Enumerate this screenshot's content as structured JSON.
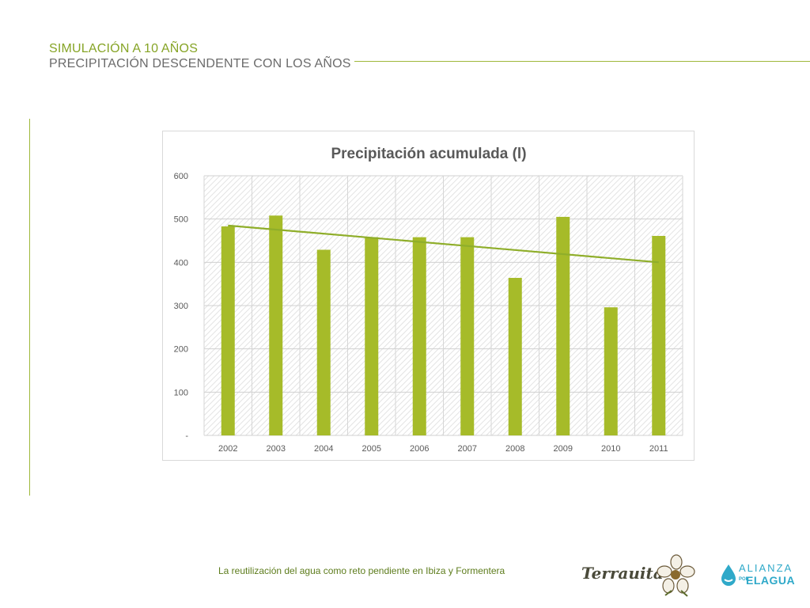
{
  "slide": {
    "title": "SIMULACIÓN A 10 AÑOS",
    "subtitle": "PRECIPITACIÓN DESCENDENTE CON LOS AÑOS",
    "footer": "La reutilización del agua como reto pendiente en Ibiza y Formentera",
    "logos": {
      "terrauita": "Terrauita",
      "alianza_top": "ALIANZA",
      "alianza_por": "POR",
      "alianza_bottom": "ELAGUA"
    },
    "accent_color": "#9fb83a"
  },
  "chart_data": {
    "type": "bar",
    "title": "Precipitación acumulada (l)",
    "categories": [
      "2002",
      "2003",
      "2004",
      "2005",
      "2006",
      "2007",
      "2008",
      "2009",
      "2010",
      "2011"
    ],
    "values": [
      483,
      508,
      429,
      458,
      458,
      458,
      364,
      505,
      296,
      461
    ],
    "trendline": {
      "start": 485,
      "end": 400
    },
    "ylim": [
      0,
      600
    ],
    "yticks": [
      0,
      100,
      200,
      300,
      400,
      500,
      600
    ],
    "ytick_labels": [
      "-",
      "100",
      "200",
      "300",
      "400",
      "500",
      "600"
    ],
    "xlabel": "",
    "ylabel": "",
    "grid": true,
    "legend": "none",
    "colors": {
      "bar": "#a6bb29",
      "trend": "#8fae2a",
      "plot_bg_hatch": "#e6e6e6"
    }
  }
}
